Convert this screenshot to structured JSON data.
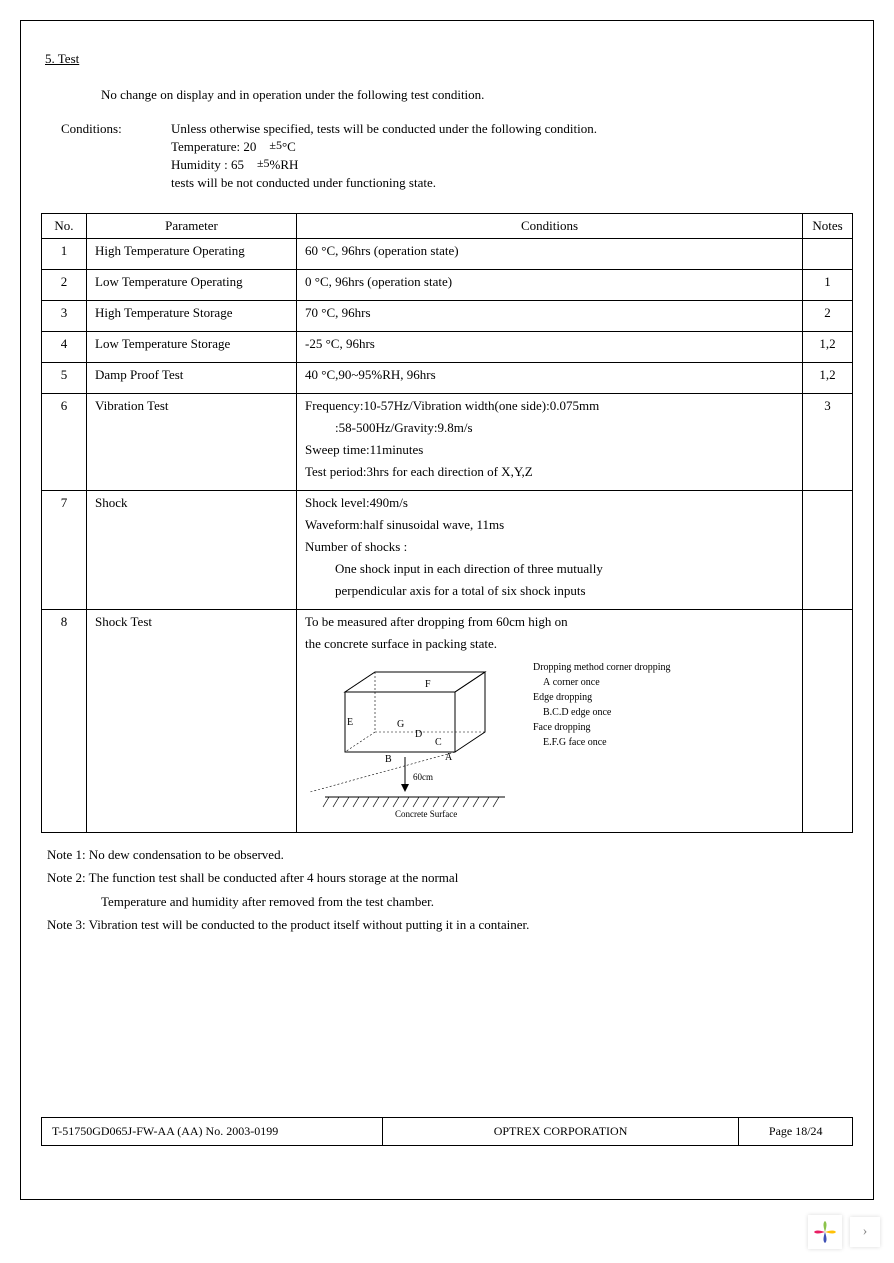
{
  "section": {
    "title": "5.  Test"
  },
  "intro": "No change on display and in operation under the following test condition.",
  "conditions": {
    "label": "Conditions:",
    "line1": "Unless otherwise specified, tests will be conducted under the following condition.",
    "temp_label": "Temperature: 20",
    "temp_tol": "±5",
    "temp_unit": "°C",
    "humid_label": "Humidity : 65",
    "humid_tol": "±5",
    "humid_unit": "%RH",
    "line4": "tests will be not conducted under functioning state."
  },
  "table": {
    "headers": {
      "no": "No.",
      "param": "Parameter",
      "cond": "Conditions",
      "notes": "Notes"
    },
    "rows": [
      {
        "no": "1",
        "param": "High Temperature Operating",
        "cond_lines": [
          "60 °C, 96hrs (operation state)"
        ],
        "notes": ""
      },
      {
        "no": "2",
        "param": "Low Temperature Operating",
        "cond_lines": [
          "0 °C, 96hrs (operation state)"
        ],
        "notes": "1"
      },
      {
        "no": "3",
        "param": "High Temperature Storage",
        "cond_lines": [
          "70 °C, 96hrs"
        ],
        "notes": "2"
      },
      {
        "no": "4",
        "param": "Low Temperature Storage",
        "cond_lines": [
          "-25 °C, 96hrs"
        ],
        "notes": "1,2"
      },
      {
        "no": "5",
        "param": "Damp Proof Test",
        "cond_lines": [
          "40 °C,90~95%RH, 96hrs"
        ],
        "notes": "1,2"
      },
      {
        "no": "6",
        "param": "Vibration Test",
        "cond_lines": [
          "Frequency:10-57Hz/Vibration width(one side):0.075mm",
          "            :58-500Hz/Gravity:9.8m/s",
          "Sweep time:11minutes",
          "Test period:3hrs for each direction of X,Y,Z"
        ],
        "notes": "3"
      },
      {
        "no": "7",
        "param": "Shock",
        "cond_lines": [
          "Shock level:490m/s",
          "Waveform:half sinusoidal wave, 11ms",
          "Number of shocks :",
          "    One shock input in each direction of three mutually",
          "    perpendicular axis for a total of six shock inputs"
        ],
        "notes": ""
      },
      {
        "no": "8",
        "param": "Shock Test",
        "cond_lines": [
          "To be measured after dropping from 60cm high on",
          "the concrete surface in packing state."
        ],
        "notes": "",
        "has_diagram": true
      }
    ]
  },
  "diagram": {
    "box_labels": {
      "A": "A",
      "B": "B",
      "C": "C",
      "D": "D",
      "E": "E",
      "F": "F",
      "G": "G"
    },
    "height_label": "60cm",
    "surface_label": "Concrete Surface",
    "side_labels": [
      "Dropping method corner dropping",
      "    A corner once",
      "Edge dropping",
      "    B.C.D edge once",
      "Face dropping",
      "    E.F.G face once"
    ]
  },
  "notes": [
    "Note 1: No dew condensation to be observed.",
    "Note 2: The function test shall be conducted after 4 hours storage at the normal",
    "Temperature and humidity after removed from the test chamber.",
    "Note 3: Vibration test will be conducted to the product itself without putting it in a container."
  ],
  "footer": {
    "left": "T-51750GD065J-FW-AA (AA) No. 2003-0199",
    "mid": "OPTREX CORPORATION",
    "right": "Page 18/24"
  },
  "colors": {
    "logo_petal1": "#8bc34a",
    "logo_petal2": "#ffc107",
    "logo_petal3": "#3f51b5",
    "logo_petal4": "#e91e63"
  }
}
